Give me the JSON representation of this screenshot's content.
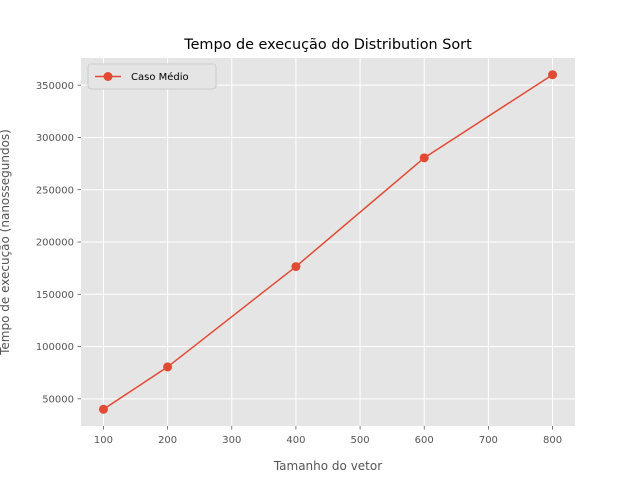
{
  "chart_data": {
    "type": "line",
    "title": "Tempo de execução do Distribution Sort",
    "xlabel": "Tamanho do vetor",
    "ylabel": "Tempo de execução (nanossegundos)",
    "x": [
      100,
      200,
      400,
      600,
      800
    ],
    "series": [
      {
        "name": "Caso Médio",
        "values": [
          40000,
          80500,
          176500,
          280500,
          360000
        ],
        "color": "#E24A33"
      }
    ],
    "xlim": [
      65,
      835
    ],
    "ylim": [
      24000,
      376000
    ],
    "xticks": [
      100,
      200,
      300,
      400,
      500,
      600,
      700,
      800
    ],
    "yticks": [
      50000,
      100000,
      150000,
      200000,
      250000,
      300000,
      350000
    ],
    "grid": true,
    "legend_position": "top-left",
    "background": "#E5E5E5"
  }
}
